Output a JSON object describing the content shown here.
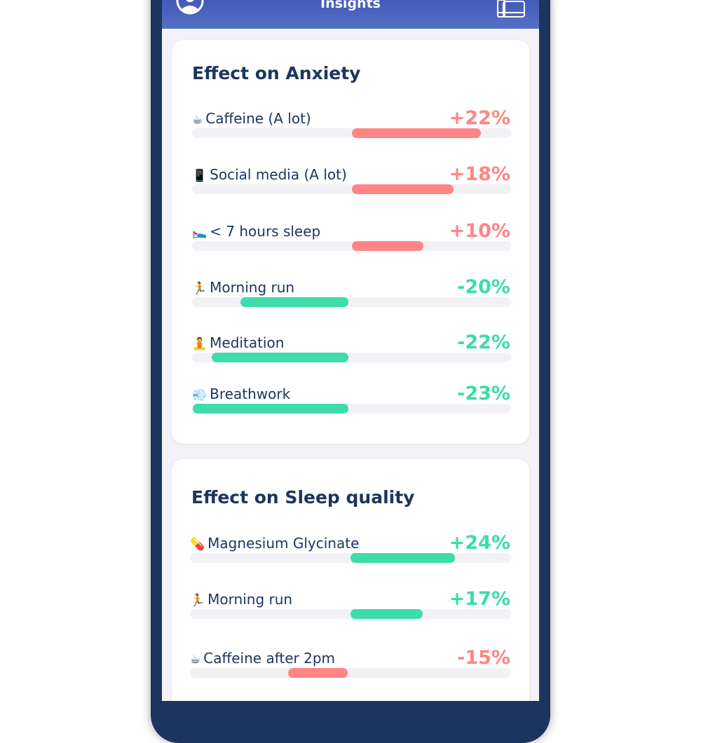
{
  "header": {
    "title": "Insights",
    "left_icon": "profile-icon",
    "right_icon": "library-icon"
  },
  "colors": {
    "positive_effect": "#ff8585",
    "negative_effect": "#3ddcaa",
    "header": "#4a63bf",
    "text": "#1b355e"
  },
  "cards": [
    {
      "title": "Effect on Anxiety",
      "rows": [
        {
          "emoji": "☕",
          "icon": "coffee-icon",
          "label": "Caffeine (A lot)",
          "value": "+22%",
          "color": "#ff8585",
          "direction": "right",
          "fill": 0.81
        },
        {
          "emoji": "📱",
          "icon": "phone-icon",
          "label": "Social media (A lot)",
          "value": "+18%",
          "color": "#ff8585",
          "direction": "right",
          "fill": 0.64
        },
        {
          "emoji": "🛌",
          "icon": "bed-icon",
          "label": "< 7 hours sleep",
          "value": "+10%",
          "color": "#ff8585",
          "direction": "right",
          "fill": 0.45
        },
        {
          "emoji": "🏃",
          "icon": "runner-icon",
          "label": "Morning run",
          "value": "-20%",
          "color": "#3ddcaa",
          "direction": "left",
          "fill": 0.68
        },
        {
          "emoji": "🧘",
          "icon": "meditation-icon",
          "label": "Meditation",
          "value": "-22%",
          "color": "#3ddcaa",
          "direction": "left",
          "fill": 0.86
        },
        {
          "emoji": "💨",
          "icon": "breath-icon",
          "label": "Breathwork",
          "value": "-23%",
          "color": "#3ddcaa",
          "direction": "left",
          "fill": 0.98
        }
      ]
    },
    {
      "title": "Effect on Sleep quality",
      "rows": [
        {
          "emoji": "💊",
          "icon": "pill-icon",
          "label": "Magnesium Glycinate",
          "value": "+24%",
          "color": "#3ddcaa",
          "direction": "right",
          "fill": 0.65
        },
        {
          "emoji": "🏃",
          "icon": "runner-icon",
          "label": "Morning run",
          "value": "+17%",
          "color": "#3ddcaa",
          "direction": "right",
          "fill": 0.45
        },
        {
          "emoji": "☕",
          "icon": "coffee-icon",
          "label": "Caffeine after 2pm",
          "value": "-15%",
          "color": "#ff8585",
          "direction": "left",
          "fill": 0.37
        }
      ]
    }
  ]
}
